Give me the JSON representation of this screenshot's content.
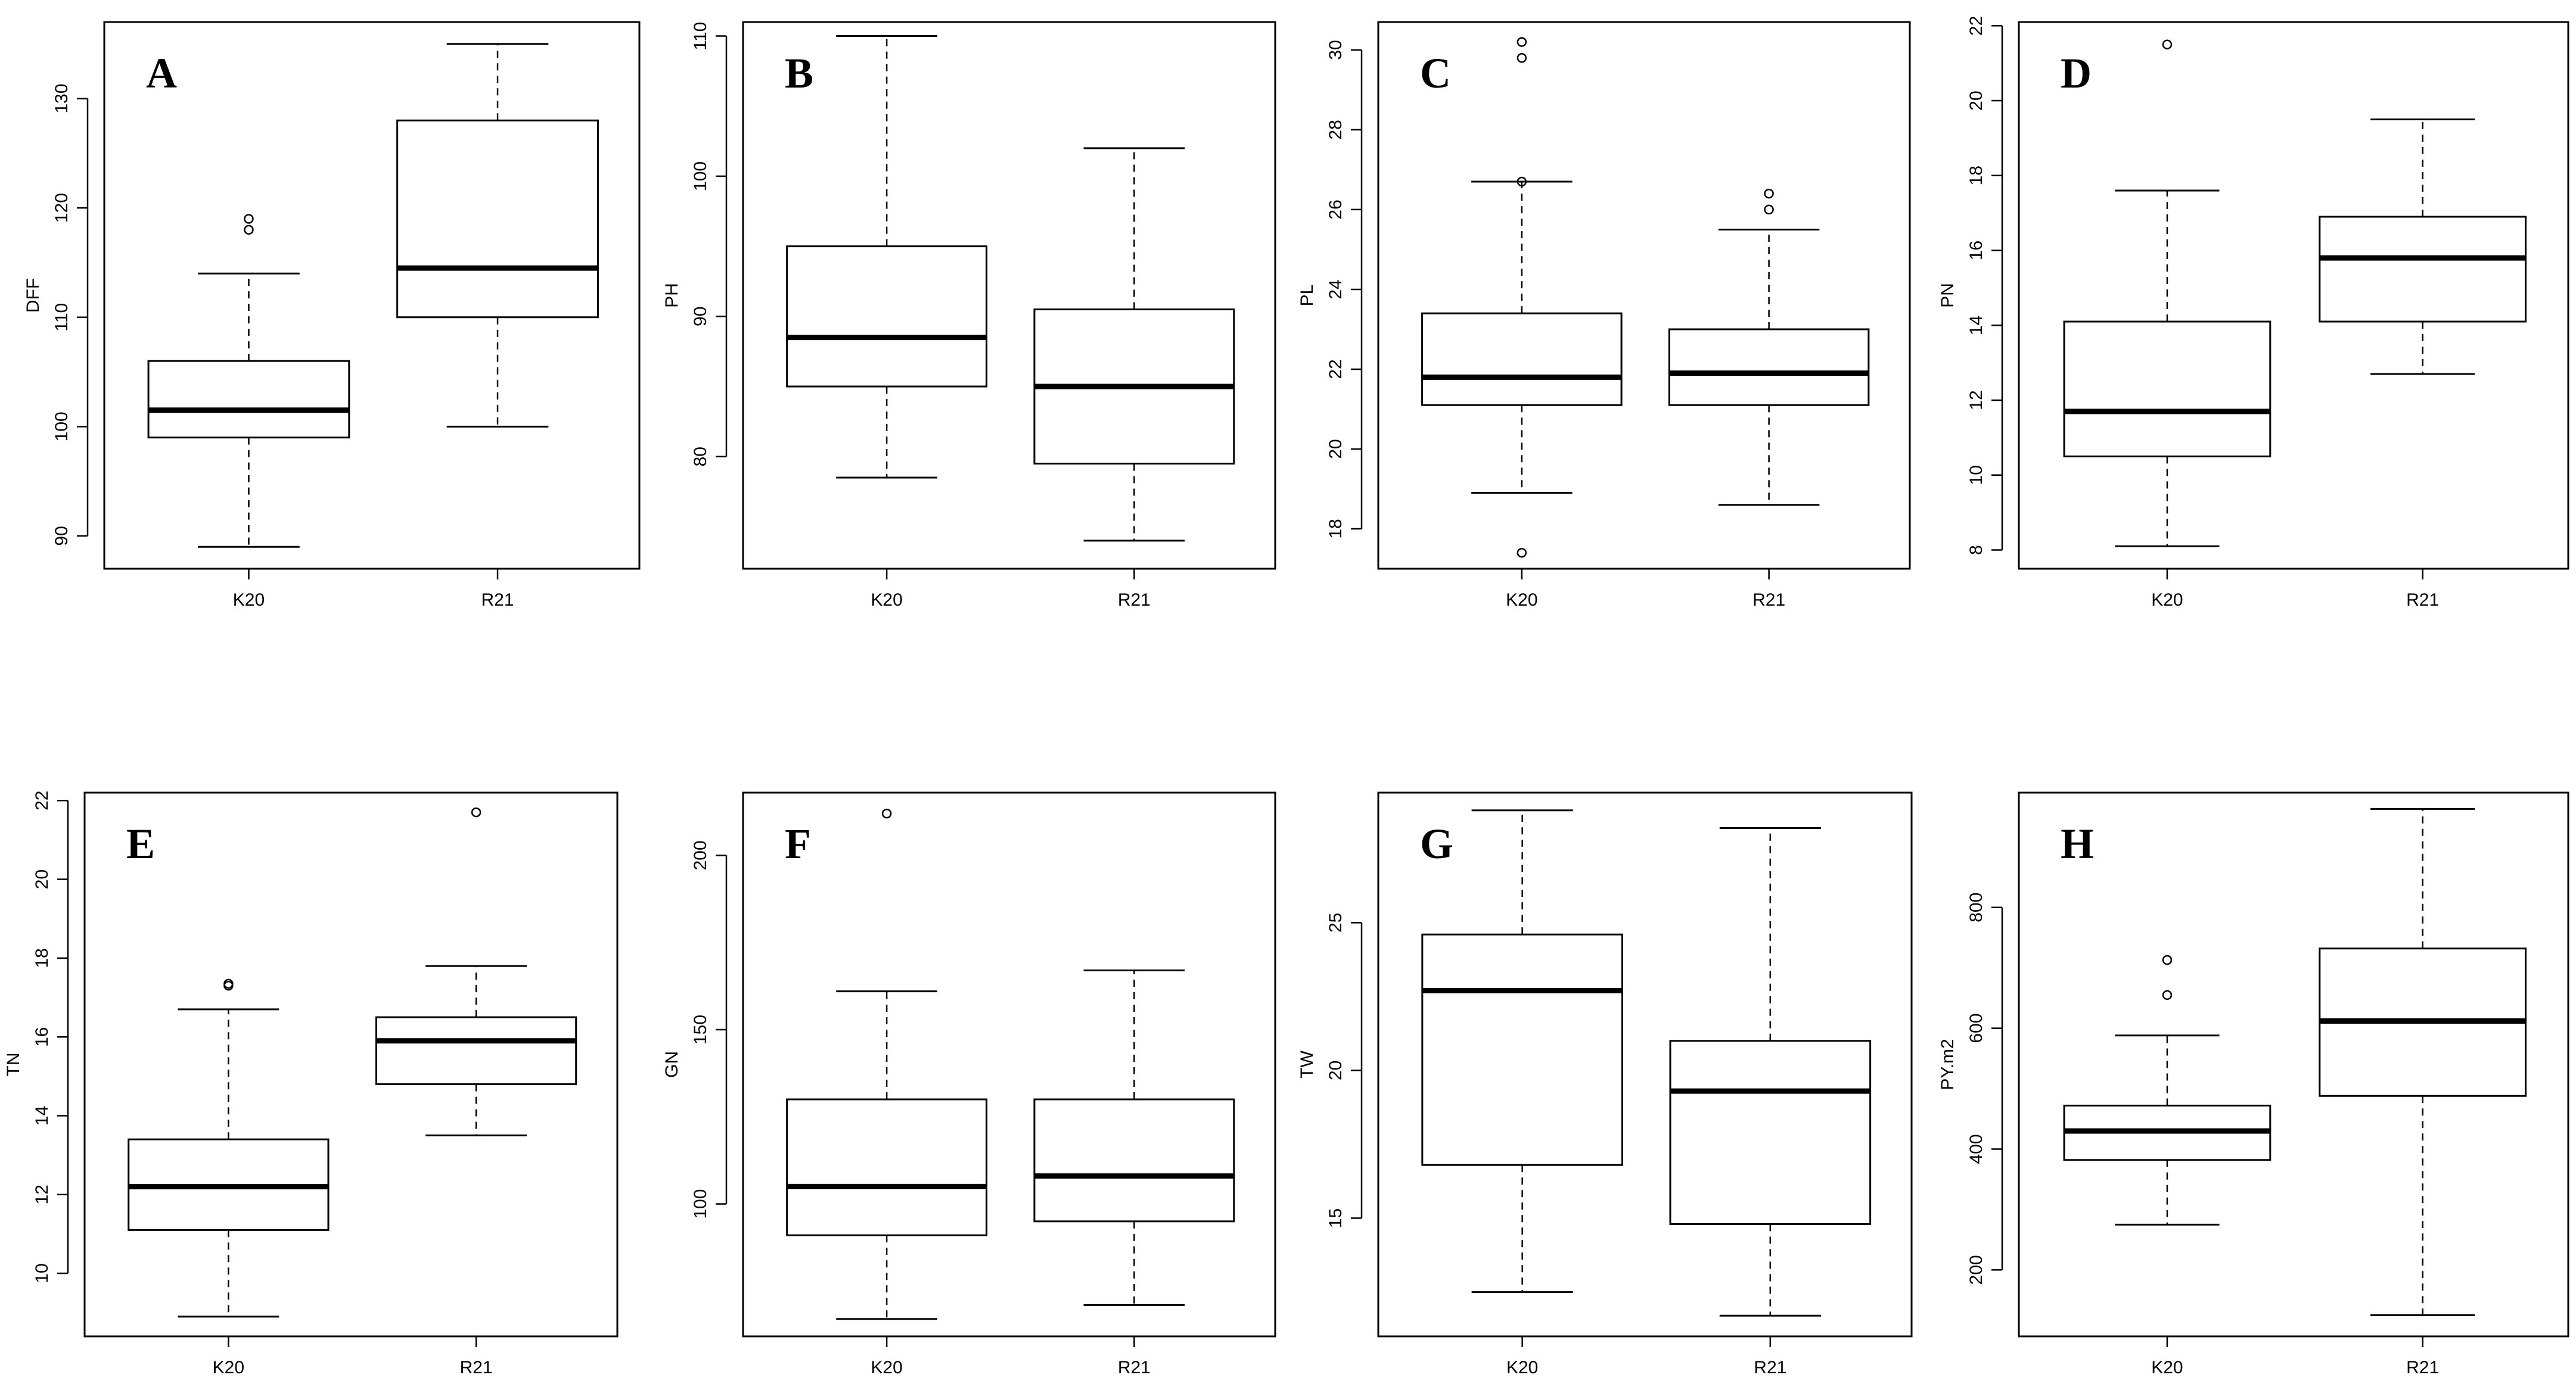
{
  "chart_data": [
    {
      "panel": "A",
      "type": "boxplot",
      "ylabel": "DFF",
      "categories": [
        "K20",
        "R21"
      ],
      "yticks": [
        90,
        100,
        110,
        120,
        130
      ],
      "ylim": [
        87,
        137
      ],
      "boxes": [
        {
          "category": "K20",
          "whisker_low": 89,
          "q1": 99,
          "median": 101.5,
          "q3": 106,
          "whisker_high": 114,
          "outliers": [
            118,
            119
          ]
        },
        {
          "category": "R21",
          "whisker_low": 100,
          "q1": 110,
          "median": 114.5,
          "q3": 128,
          "whisker_high": 135,
          "outliers": []
        }
      ]
    },
    {
      "panel": "B",
      "type": "boxplot",
      "ylabel": "PH",
      "categories": [
        "K20",
        "R21"
      ],
      "yticks": [
        80,
        90,
        100,
        110
      ],
      "ylim": [
        72,
        111
      ],
      "boxes": [
        {
          "category": "K20",
          "whisker_low": 78.5,
          "q1": 85,
          "median": 88.5,
          "q3": 95,
          "whisker_high": 110,
          "outliers": []
        },
        {
          "category": "R21",
          "whisker_low": 74,
          "q1": 79.5,
          "median": 85,
          "q3": 90.5,
          "whisker_high": 102,
          "outliers": []
        }
      ]
    },
    {
      "panel": "C",
      "type": "boxplot",
      "ylabel": "PL",
      "categories": [
        "K20",
        "R21"
      ],
      "yticks": [
        18,
        20,
        22,
        24,
        26,
        28,
        30
      ],
      "ylim": [
        17,
        30.7
      ],
      "boxes": [
        {
          "category": "K20",
          "whisker_low": 18.9,
          "q1": 21.1,
          "median": 21.8,
          "q3": 23.4,
          "whisker_high": 26.7,
          "outliers": [
            17.4,
            26.7,
            29.8,
            30.2
          ]
        },
        {
          "category": "R21",
          "whisker_low": 18.6,
          "q1": 21.1,
          "median": 21.9,
          "q3": 23.0,
          "whisker_high": 25.5,
          "outliers": [
            26.0,
            26.4
          ]
        }
      ]
    },
    {
      "panel": "D",
      "type": "boxplot",
      "ylabel": "PN",
      "categories": [
        "K20",
        "R21"
      ],
      "yticks": [
        8,
        10,
        12,
        14,
        16,
        18,
        20,
        22
      ],
      "ylim": [
        7.5,
        22.1
      ],
      "boxes": [
        {
          "category": "K20",
          "whisker_low": 8.1,
          "q1": 10.5,
          "median": 11.7,
          "q3": 14.1,
          "whisker_high": 17.6,
          "outliers": [
            21.5
          ]
        },
        {
          "category": "R21",
          "whisker_low": 12.7,
          "q1": 14.1,
          "median": 15.8,
          "q3": 16.9,
          "whisker_high": 19.5,
          "outliers": []
        }
      ]
    },
    {
      "panel": "E",
      "type": "boxplot",
      "ylabel": "TN",
      "categories": [
        "K20",
        "R21"
      ],
      "yticks": [
        10,
        12,
        14,
        16,
        18,
        20,
        22
      ],
      "ylim": [
        8.4,
        22.2
      ],
      "boxes": [
        {
          "category": "K20",
          "whisker_low": 8.9,
          "q1": 11.1,
          "median": 12.2,
          "q3": 13.4,
          "whisker_high": 16.7,
          "outliers": [
            17.3,
            17.35
          ]
        },
        {
          "category": "R21",
          "whisker_low": 13.5,
          "q1": 14.8,
          "median": 15.9,
          "q3": 16.5,
          "whisker_high": 17.8,
          "outliers": [
            21.7
          ]
        }
      ]
    },
    {
      "panel": "F",
      "type": "boxplot",
      "ylabel": "GN",
      "categories": [
        "K20",
        "R21"
      ],
      "yticks": [
        100,
        150,
        200
      ],
      "ylim": [
        62,
        218
      ],
      "boxes": [
        {
          "category": "K20",
          "whisker_low": 67,
          "q1": 91,
          "median": 105,
          "q3": 130,
          "whisker_high": 161,
          "outliers": [
            212
          ]
        },
        {
          "category": "R21",
          "whisker_low": 71,
          "q1": 95,
          "median": 108,
          "q3": 130,
          "whisker_high": 167,
          "outliers": []
        }
      ]
    },
    {
      "panel": "G",
      "type": "boxplot",
      "ylabel": "TW",
      "categories": [
        "K20",
        "R21"
      ],
      "yticks": [
        15,
        20,
        25
      ],
      "ylim": [
        11,
        29.4
      ],
      "boxes": [
        {
          "category": "K20",
          "whisker_low": 12.5,
          "q1": 16.8,
          "median": 22.7,
          "q3": 24.6,
          "whisker_high": 28.8,
          "outliers": []
        },
        {
          "category": "R21",
          "whisker_low": 11.7,
          "q1": 14.8,
          "median": 19.3,
          "q3": 21.0,
          "whisker_high": 28.2,
          "outliers": []
        }
      ]
    },
    {
      "panel": "H",
      "type": "boxplot",
      "ylabel": "PY.m2",
      "categories": [
        "K20",
        "R21"
      ],
      "yticks": [
        200,
        400,
        600,
        800
      ],
      "ylim": [
        90,
        990
      ],
      "boxes": [
        {
          "category": "K20",
          "whisker_low": 275,
          "q1": 382,
          "median": 430,
          "q3": 472,
          "whisker_high": 588,
          "outliers": [
            655,
            713
          ]
        },
        {
          "category": "R21",
          "whisker_low": 125,
          "q1": 488,
          "median": 612,
          "q3": 732,
          "whisker_high": 963,
          "outliers": []
        }
      ]
    }
  ]
}
